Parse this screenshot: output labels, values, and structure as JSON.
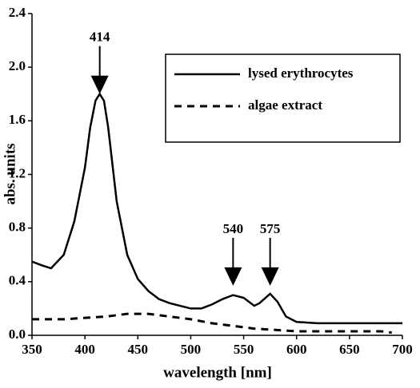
{
  "chart_data": {
    "type": "line",
    "xlabel": "wavelength [nm]",
    "ylabel": "abs. units",
    "xlim": [
      350,
      700
    ],
    "xticks": [
      350,
      400,
      450,
      500,
      550,
      600,
      650,
      700
    ],
    "ylim": [
      0,
      2.4
    ],
    "yticks": [
      {
        "value": 0,
        "label": "0.0"
      },
      0.4,
      0.8,
      1.2,
      1.6,
      {
        "value": 2,
        "label": "2.0"
      },
      2.4
    ],
    "legend": "upper right",
    "series": [
      {
        "name": "lysed erythrocytes",
        "color": "#000000",
        "dash": "solid",
        "x": [
          350,
          360,
          368,
          380,
          390,
          400,
          405,
          410,
          414,
          418,
          422,
          430,
          440,
          450,
          460,
          470,
          480,
          490,
          500,
          510,
          520,
          530,
          540,
          550,
          560,
          565,
          575,
          582,
          590,
          600,
          620,
          650,
          700
        ],
        "values": [
          0.55,
          0.52,
          0.5,
          0.6,
          0.85,
          1.25,
          1.55,
          1.75,
          1.8,
          1.75,
          1.55,
          1.0,
          0.6,
          0.42,
          0.33,
          0.27,
          0.24,
          0.22,
          0.2,
          0.2,
          0.23,
          0.27,
          0.3,
          0.28,
          0.22,
          0.24,
          0.31,
          0.25,
          0.14,
          0.1,
          0.09,
          0.09,
          0.09
        ]
      },
      {
        "name": "algae extract",
        "color": "#000000",
        "dash": "dashed",
        "x": [
          350,
          380,
          400,
          420,
          440,
          460,
          480,
          500,
          520,
          540,
          560,
          580,
          600,
          640,
          680,
          690
        ],
        "values": [
          0.12,
          0.12,
          0.13,
          0.14,
          0.16,
          0.16,
          0.14,
          0.12,
          0.09,
          0.07,
          0.05,
          0.04,
          0.03,
          0.03,
          0.03,
          0.02
        ]
      }
    ],
    "annotations": [
      {
        "text": "414",
        "x": 414,
        "y": 1.8
      },
      {
        "text": "540",
        "x": 540,
        "y": 0.37
      },
      {
        "text": "575",
        "x": 575,
        "y": 0.37
      }
    ]
  }
}
